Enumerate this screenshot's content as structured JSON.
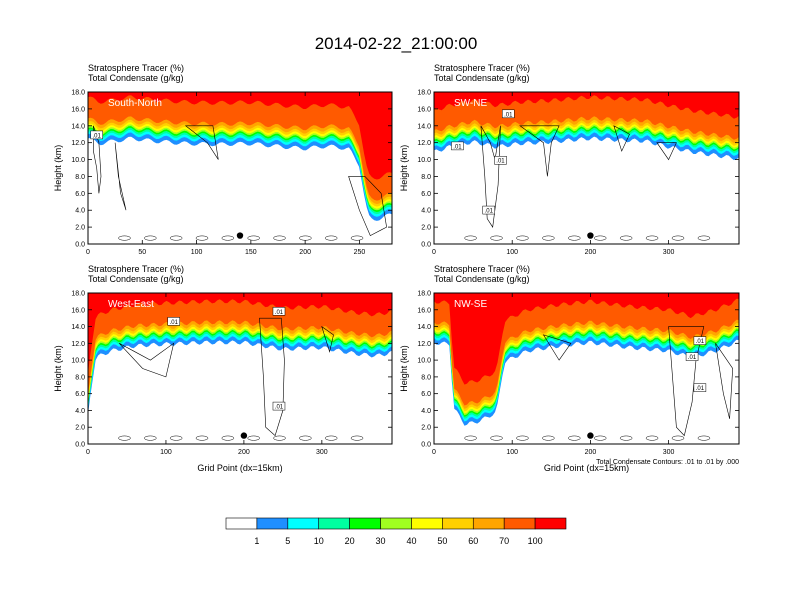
{
  "figure": {
    "title": "2014-02-22_21:00:00",
    "footnote": "Total Condensate Contours: .01 to .01 by .000"
  },
  "colorbar": {
    "colors": [
      "#ffffff",
      "#1f8fff",
      "#00ffff",
      "#00ffa0",
      "#00ff00",
      "#a0ff20",
      "#ffff00",
      "#ffd000",
      "#ffa500",
      "#ff5a00",
      "#ff0000"
    ],
    "labels": [
      "1",
      "5",
      "10",
      "20",
      "30",
      "40",
      "50",
      "60",
      "70",
      "100"
    ]
  },
  "chart_data": [
    {
      "type": "heatmap",
      "header_line1": "Stratosphere Tracer   (%)",
      "header_line2": "Total Condensate   (g/kg)",
      "region": "South-North",
      "xlabel": "",
      "ylabel": "Height (km)",
      "xlim": [
        0,
        280
      ],
      "ylim": [
        0,
        18
      ],
      "xticks": [
        0,
        50,
        100,
        150,
        200,
        250
      ],
      "yticks": [
        0.0,
        2.0,
        4.0,
        6.0,
        8.0,
        10.0,
        12.0,
        14.0,
        16.0,
        18.0
      ],
      "tracer_base_km": [
        [
          0,
          15.2
        ],
        [
          10,
          14.6
        ],
        [
          20,
          14.8
        ],
        [
          30,
          15.0
        ],
        [
          40,
          15.2
        ],
        [
          60,
          14.9
        ],
        [
          90,
          14.6
        ],
        [
          120,
          14.5
        ],
        [
          150,
          14.6
        ],
        [
          180,
          14.2
        ],
        [
          200,
          14.0
        ],
        [
          220,
          14.3
        ],
        [
          240,
          14.0
        ],
        [
          250,
          12.0
        ],
        [
          255,
          8.0
        ],
        [
          258,
          6.0
        ],
        [
          262,
          5.5
        ],
        [
          270,
          5.8
        ],
        [
          280,
          6.2
        ]
      ],
      "contour_labels": [
        ".01"
      ]
    },
    {
      "type": "heatmap",
      "header_line1": "Stratosphere Tracer   (%)",
      "header_line2": "Total Condensate   (g/kg)",
      "region": "SW-NE",
      "xlabel": "",
      "ylabel": "Height (km)",
      "xlim": [
        0,
        390
      ],
      "ylim": [
        0,
        18
      ],
      "xticks": [
        0,
        100,
        200,
        300
      ],
      "yticks": [
        0.0,
        2.0,
        4.0,
        6.0,
        8.0,
        10.0,
        12.0,
        14.0,
        16.0,
        18.0
      ],
      "tracer_base_km": [
        [
          0,
          13.6
        ],
        [
          20,
          14.2
        ],
        [
          50,
          14.8
        ],
        [
          80,
          14.2
        ],
        [
          110,
          14.6
        ],
        [
          150,
          14.8
        ],
        [
          200,
          15.2
        ],
        [
          240,
          15.0
        ],
        [
          270,
          14.9
        ],
        [
          300,
          14.2
        ],
        [
          330,
          13.6
        ],
        [
          360,
          13.2
        ],
        [
          390,
          12.8
        ]
      ],
      "contour_labels": [
        ".01",
        ".01",
        ".01",
        ".01"
      ]
    },
    {
      "type": "heatmap",
      "header_line1": "Stratosphere Tracer   (%)",
      "header_line2": "Total Condensate   (g/kg)",
      "region": "West-East",
      "xlabel": "Grid Point (dx=15km)",
      "ylabel": "Height (km)",
      "xlim": [
        0,
        390
      ],
      "ylim": [
        0,
        18
      ],
      "xticks": [
        0,
        100,
        200,
        300
      ],
      "yticks": [
        0.0,
        2.0,
        4.0,
        6.0,
        8.0,
        10.0,
        12.0,
        14.0,
        16.0,
        18.0
      ],
      "tracer_base_km": [
        [
          0,
          6.0
        ],
        [
          5,
          10.0
        ],
        [
          10,
          13.0
        ],
        [
          30,
          13.8
        ],
        [
          60,
          14.4
        ],
        [
          100,
          14.6
        ],
        [
          150,
          14.8
        ],
        [
          200,
          14.8
        ],
        [
          250,
          14.0
        ],
        [
          300,
          14.2
        ],
        [
          340,
          13.5
        ],
        [
          370,
          13.2
        ],
        [
          390,
          13.6
        ]
      ],
      "contour_labels": [
        ".01",
        ".01",
        ".01"
      ]
    },
    {
      "type": "heatmap",
      "header_line1": "Stratosphere Tracer   (%)",
      "header_line2": "Total Condensate   (g/kg)",
      "region": "NW-SE",
      "xlabel": "Grid Point (dx=15km)",
      "ylabel": "Height (km)",
      "xlim": [
        0,
        390
      ],
      "ylim": [
        0,
        18
      ],
      "xticks": [
        0,
        100,
        200,
        300
      ],
      "yticks": [
        0.0,
        2.0,
        4.0,
        6.0,
        8.0,
        10.0,
        12.0,
        14.0,
        16.0,
        18.0
      ],
      "tracer_base_km": [
        [
          0,
          14.8
        ],
        [
          20,
          14.6
        ],
        [
          25,
          7.0
        ],
        [
          40,
          5.0
        ],
        [
          60,
          5.5
        ],
        [
          80,
          6.5
        ],
        [
          90,
          12.5
        ],
        [
          120,
          13.8
        ],
        [
          160,
          14.4
        ],
        [
          200,
          14.8
        ],
        [
          250,
          14.2
        ],
        [
          300,
          13.8
        ],
        [
          330,
          13.0
        ],
        [
          360,
          13.8
        ],
        [
          390,
          15.0
        ]
      ],
      "contour_labels": [
        ".01",
        ".01",
        ".01"
      ]
    }
  ]
}
